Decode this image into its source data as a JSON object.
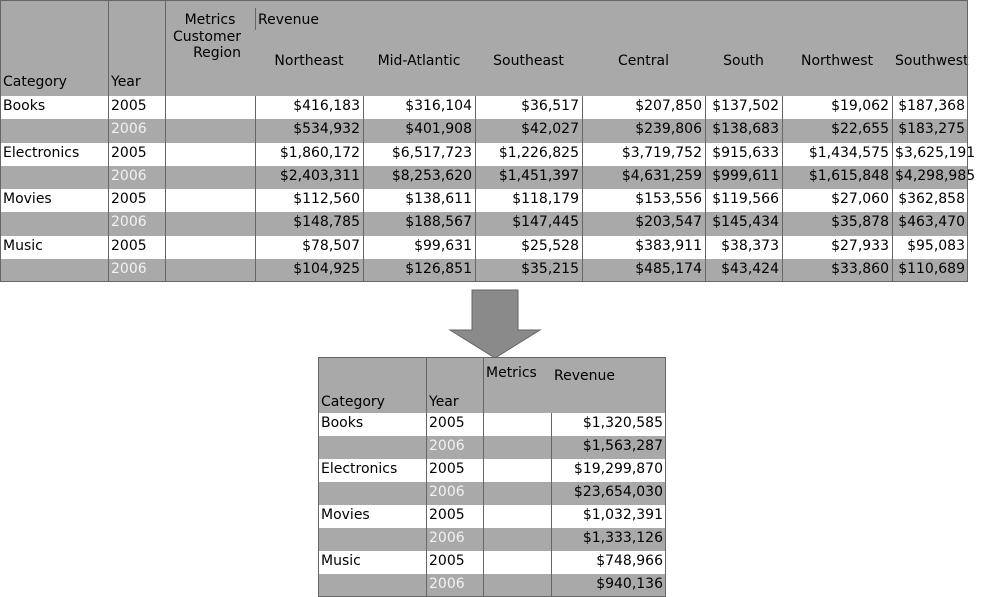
{
  "top_table": {
    "header": {
      "metrics": "Metrics",
      "row_attribute": "Customer Region",
      "metric": "Revenue",
      "category": "Category",
      "year": "Year",
      "regions": [
        "Northeast",
        "Mid-Atlantic",
        "Southeast",
        "Central",
        "South",
        "Northwest",
        "Southwest"
      ]
    },
    "groups": [
      {
        "category": "Books",
        "rows": [
          {
            "year": "2005",
            "values": [
              "$416,183",
              "$316,104",
              "$36,517",
              "$207,850",
              "$137,502",
              "$19,062",
              "$187,368"
            ]
          },
          {
            "year": "2006",
            "values": [
              "$534,932",
              "$401,908",
              "$42,027",
              "$239,806",
              "$138,683",
              "$22,655",
              "$183,275"
            ]
          }
        ]
      },
      {
        "category": "Electronics",
        "rows": [
          {
            "year": "2005",
            "values": [
              "$1,860,172",
              "$6,517,723",
              "$1,226,825",
              "$3,719,752",
              "$915,633",
              "$1,434,575",
              "$3,625,191"
            ]
          },
          {
            "year": "2006",
            "values": [
              "$2,403,311",
              "$8,253,620",
              "$1,451,397",
              "$4,631,259",
              "$999,611",
              "$1,615,848",
              "$4,298,985"
            ]
          }
        ]
      },
      {
        "category": "Movies",
        "rows": [
          {
            "year": "2005",
            "values": [
              "$112,560",
              "$138,611",
              "$118,179",
              "$153,556",
              "$119,566",
              "$27,060",
              "$362,858"
            ]
          },
          {
            "year": "2006",
            "values": [
              "$148,785",
              "$188,567",
              "$147,445",
              "$203,547",
              "$145,434",
              "$35,878",
              "$463,470"
            ]
          }
        ]
      },
      {
        "category": "Music",
        "rows": [
          {
            "year": "2005",
            "values": [
              "$78,507",
              "$99,631",
              "$25,528",
              "$383,911",
              "$38,373",
              "$27,933",
              "$95,083"
            ]
          },
          {
            "year": "2006",
            "values": [
              "$104,925",
              "$126,851",
              "$35,215",
              "$485,174",
              "$43,424",
              "$33,860",
              "$110,689"
            ]
          }
        ]
      }
    ]
  },
  "bottom_table": {
    "header": {
      "metrics": "Metrics",
      "metric": "Revenue",
      "category": "Category",
      "year": "Year"
    },
    "groups": [
      {
        "category": "Books",
        "rows": [
          {
            "year": "2005",
            "value": "$1,320,585"
          },
          {
            "year": "2006",
            "value": "$1,563,287"
          }
        ]
      },
      {
        "category": "Electronics",
        "rows": [
          {
            "year": "2005",
            "value": "$19,299,870"
          },
          {
            "year": "2006",
            "value": "$23,654,030"
          }
        ]
      },
      {
        "category": "Movies",
        "rows": [
          {
            "year": "2005",
            "value": "$1,032,391"
          },
          {
            "year": "2006",
            "value": "$1,333,126"
          }
        ]
      },
      {
        "category": "Music",
        "rows": [
          {
            "year": "2005",
            "value": "$748,966"
          },
          {
            "year": "2006",
            "value": "$940,136"
          }
        ]
      }
    ]
  }
}
